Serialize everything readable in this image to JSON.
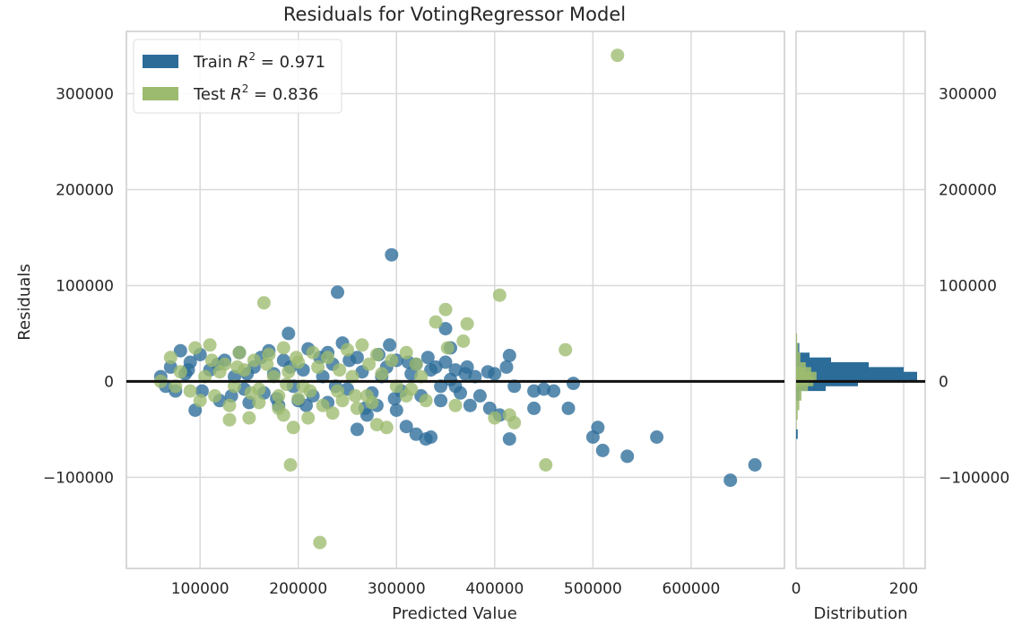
{
  "chart_data": {
    "type": "scatter",
    "title": "Residuals for VotingRegressor Model",
    "xlabel": "Predicted Value",
    "ylabel": "Residuals",
    "xlim": [
      25000,
      695000
    ],
    "ylim": [
      -195000,
      365000
    ],
    "xticks": [
      100000,
      200000,
      300000,
      400000,
      500000,
      600000
    ],
    "xtick_labels": [
      "100000",
      "200000",
      "300000",
      "400000",
      "500000",
      "600000"
    ],
    "yticks": [
      -100000,
      0,
      100000,
      200000,
      300000
    ],
    "ytick_labels": [
      "−100000",
      "0",
      "100000",
      "200000",
      "300000"
    ],
    "grid": true,
    "legend_position": "top-left",
    "legend": [
      {
        "prefix": "Train ",
        "r": "R",
        "sup": "2",
        "suffix": " = 0.971",
        "color": "#2b6c99"
      },
      {
        "prefix": "Test ",
        "r": "R",
        "sup": "2",
        "suffix": " = 0.836",
        "color": "#9dbb6f"
      }
    ],
    "zero_line_color": "#111111",
    "series": [
      {
        "name": "Train",
        "color": "#2b6c99",
        "points": [
          [
            295000,
            132000
          ],
          [
            240000,
            93000
          ],
          [
            190000,
            50000
          ],
          [
            350000,
            55000
          ],
          [
            355000,
            35000
          ],
          [
            415000,
            27000
          ],
          [
            393000,
            10000
          ],
          [
            412000,
            15000
          ],
          [
            350000,
            20000
          ],
          [
            80000,
            32000
          ],
          [
            100000,
            28000
          ],
          [
            140000,
            30000
          ],
          [
            170000,
            32000
          ],
          [
            210000,
            34000
          ],
          [
            230000,
            30000
          ],
          [
            245000,
            40000
          ],
          [
            260000,
            25000
          ],
          [
            293000,
            38000
          ],
          [
            300000,
            22000
          ],
          [
            320000,
            18000
          ],
          [
            340000,
            15000
          ],
          [
            360000,
            12000
          ],
          [
            370000,
            8000
          ],
          [
            380000,
            5000
          ],
          [
            400000,
            8000
          ],
          [
            420000,
            -5000
          ],
          [
            440000,
            -10000
          ],
          [
            450000,
            -8000
          ],
          [
            460000,
            -10000
          ],
          [
            480000,
            -2000
          ],
          [
            360000,
            -5000
          ],
          [
            345000,
            -20000
          ],
          [
            375000,
            -25000
          ],
          [
            395000,
            -28000
          ],
          [
            405000,
            -35000
          ],
          [
            440000,
            -28000
          ],
          [
            415000,
            -60000
          ],
          [
            475000,
            -28000
          ],
          [
            500000,
            -58000
          ],
          [
            505000,
            -48000
          ],
          [
            510000,
            -72000
          ],
          [
            535000,
            -78000
          ],
          [
            565000,
            -58000
          ],
          [
            640000,
            -103000
          ],
          [
            665000,
            -87000
          ],
          [
            310000,
            -47000
          ],
          [
            320000,
            -55000
          ],
          [
            335000,
            -58000
          ],
          [
            330000,
            -60000
          ],
          [
            260000,
            -50000
          ],
          [
            270000,
            -35000
          ],
          [
            300000,
            -30000
          ],
          [
            280000,
            -25000
          ],
          [
            230000,
            -22000
          ],
          [
            200000,
            -20000
          ],
          [
            180000,
            -25000
          ],
          [
            150000,
            -22000
          ],
          [
            120000,
            -20000
          ],
          [
            95000,
            -30000
          ],
          [
            70000,
            15000
          ],
          [
            60000,
            5000
          ],
          [
            65000,
            -5000
          ],
          [
            75000,
            -10000
          ],
          [
            85000,
            8000
          ],
          [
            90000,
            20000
          ],
          [
            110000,
            12000
          ],
          [
            125000,
            22000
          ],
          [
            135000,
            5000
          ],
          [
            145000,
            -8000
          ],
          [
            155000,
            15000
          ],
          [
            165000,
            -12000
          ],
          [
            175000,
            8000
          ],
          [
            185000,
            22000
          ],
          [
            195000,
            -5000
          ],
          [
            205000,
            12000
          ],
          [
            215000,
            -15000
          ],
          [
            225000,
            5000
          ],
          [
            235000,
            18000
          ],
          [
            250000,
            -8000
          ],
          [
            265000,
            10000
          ],
          [
            275000,
            -12000
          ],
          [
            285000,
            5000
          ],
          [
            290000,
            15000
          ],
          [
            305000,
            -10000
          ],
          [
            315000,
            8000
          ],
          [
            325000,
            -15000
          ],
          [
            335000,
            12000
          ],
          [
            345000,
            -5000
          ],
          [
            355000,
            2000
          ],
          [
            365000,
            -12000
          ],
          [
            385000,
            -15000
          ],
          [
            372000,
            15000
          ],
          [
            332000,
            25000
          ],
          [
            312000,
            20000
          ],
          [
            298000,
            -18000
          ],
          [
            282000,
            28000
          ],
          [
            268000,
            -28000
          ],
          [
            252000,
            22000
          ],
          [
            238000,
            -5000
          ],
          [
            222000,
            25000
          ],
          [
            208000,
            -25000
          ],
          [
            192000,
            15000
          ],
          [
            178000,
            -18000
          ],
          [
            162000,
            25000
          ],
          [
            148000,
            8000
          ],
          [
            132000,
            -15000
          ],
          [
            118000,
            18000
          ],
          [
            102000,
            -10000
          ],
          [
            88000,
            12000
          ]
        ]
      },
      {
        "name": "Test",
        "color": "#9dbb6f",
        "points": [
          [
            525000,
            340000
          ],
          [
            405000,
            90000
          ],
          [
            165000,
            82000
          ],
          [
            350000,
            75000
          ],
          [
            340000,
            62000
          ],
          [
            372000,
            60000
          ],
          [
            368000,
            42000
          ],
          [
            472000,
            33000
          ],
          [
            352000,
            35000
          ],
          [
            222000,
            -168000
          ],
          [
            192000,
            -87000
          ],
          [
            452000,
            -87000
          ],
          [
            415000,
            -35000
          ],
          [
            420000,
            -43000
          ],
          [
            400000,
            -38000
          ],
          [
            280000,
            -45000
          ],
          [
            290000,
            -48000
          ],
          [
            195000,
            -48000
          ],
          [
            130000,
            -40000
          ],
          [
            150000,
            -38000
          ],
          [
            185000,
            -35000
          ],
          [
            210000,
            -38000
          ],
          [
            235000,
            -33000
          ],
          [
            260000,
            -28000
          ],
          [
            310000,
            -15000
          ],
          [
            330000,
            -20000
          ],
          [
            360000,
            -25000
          ],
          [
            70000,
            25000
          ],
          [
            80000,
            10000
          ],
          [
            95000,
            35000
          ],
          [
            110000,
            38000
          ],
          [
            125000,
            18000
          ],
          [
            140000,
            30000
          ],
          [
            155000,
            22000
          ],
          [
            170000,
            28000
          ],
          [
            185000,
            35000
          ],
          [
            200000,
            20000
          ],
          [
            215000,
            30000
          ],
          [
            230000,
            25000
          ],
          [
            250000,
            33000
          ],
          [
            265000,
            38000
          ],
          [
            280000,
            28000
          ],
          [
            295000,
            22000
          ],
          [
            310000,
            30000
          ],
          [
            320000,
            18000
          ],
          [
            60000,
            0
          ],
          [
            75000,
            -5000
          ],
          [
            90000,
            -10000
          ],
          [
            105000,
            5000
          ],
          [
            115000,
            -15000
          ],
          [
            120000,
            10000
          ],
          [
            135000,
            -5000
          ],
          [
            145000,
            12000
          ],
          [
            160000,
            -8000
          ],
          [
            175000,
            5000
          ],
          [
            180000,
            -15000
          ],
          [
            190000,
            10000
          ],
          [
            205000,
            -5000
          ],
          [
            220000,
            15000
          ],
          [
            240000,
            -10000
          ],
          [
            255000,
            5000
          ],
          [
            270000,
            -15000
          ],
          [
            285000,
            8000
          ],
          [
            300000,
            -5000
          ],
          [
            100000,
            -20000
          ],
          [
            130000,
            -25000
          ],
          [
            160000,
            -22000
          ],
          [
            180000,
            -28000
          ],
          [
            200000,
            -18000
          ],
          [
            225000,
            -25000
          ],
          [
            245000,
            -20000
          ],
          [
            275000,
            -22000
          ],
          [
            112000,
            22000
          ],
          [
            138000,
            15000
          ],
          [
            152000,
            -12000
          ],
          [
            168000,
            18000
          ],
          [
            188000,
            -3000
          ],
          [
            198000,
            25000
          ],
          [
            212000,
            -10000
          ],
          [
            242000,
            12000
          ],
          [
            258000,
            -15000
          ],
          [
            272000,
            18000
          ],
          [
            315000,
            -8000
          ],
          [
            325000,
            5000
          ]
        ]
      }
    ],
    "distribution": {
      "xlabel": "Distribution",
      "xlim": [
        0,
        240
      ],
      "xticks": [
        0,
        200
      ],
      "xtick_labels": [
        "0",
        "200"
      ],
      "bin_width": 10000,
      "train_bins": [
        [
          -60000,
          3
        ],
        [
          -20000,
          6
        ],
        [
          -10000,
          55
        ],
        [
          -5000,
          115
        ],
        [
          0,
          225
        ],
        [
          5000,
          200
        ],
        [
          10000,
          135
        ],
        [
          15000,
          65
        ],
        [
          20000,
          25
        ],
        [
          30000,
          6
        ]
      ],
      "test_bins": [
        [
          -50000,
          1
        ],
        [
          -40000,
          3
        ],
        [
          -30000,
          6
        ],
        [
          -20000,
          10
        ],
        [
          -10000,
          22
        ],
        [
          -5000,
          32
        ],
        [
          0,
          38
        ],
        [
          5000,
          28
        ],
        [
          10000,
          18
        ],
        [
          20000,
          8
        ],
        [
          30000,
          4
        ],
        [
          40000,
          2
        ]
      ]
    }
  }
}
